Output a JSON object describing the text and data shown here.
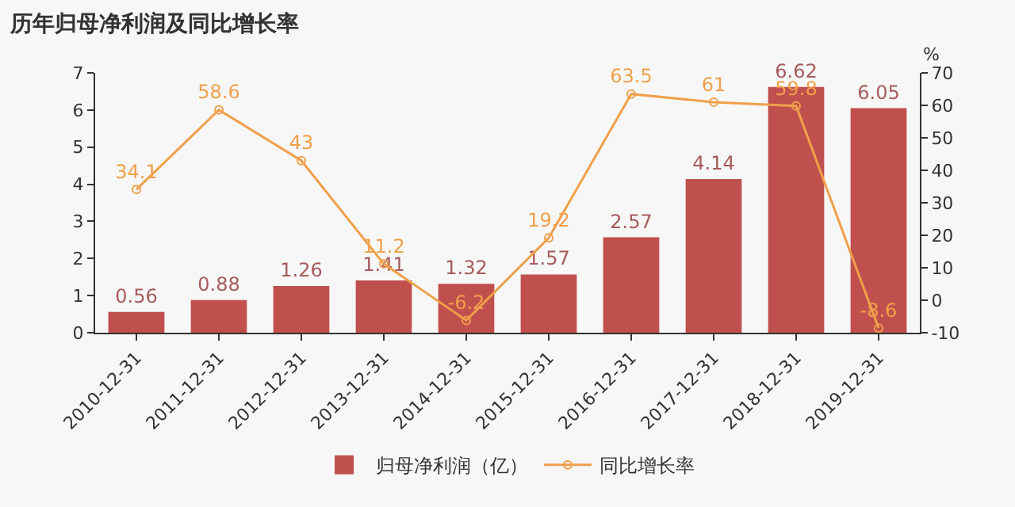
{
  "chart_data": {
    "type": "bar",
    "title": "历年归母净利润及同比增长率",
    "categories": [
      "2010-12-31",
      "2011-12-31",
      "2012-12-31",
      "2013-12-31",
      "2014-12-31",
      "2015-12-31",
      "2016-12-31",
      "2017-12-31",
      "2018-12-31",
      "2019-12-31"
    ],
    "series": [
      {
        "name": "归母净利润（亿）",
        "color": "#c0504d",
        "values": [
          0.56,
          0.88,
          1.26,
          1.41,
          1.32,
          1.57,
          2.57,
          4.14,
          6.62,
          6.05
        ]
      },
      {
        "name": "同比增长率",
        "type": "line",
        "axis": "y2",
        "color": "#f0a04b",
        "values": [
          34.1,
          58.6,
          43,
          11.2,
          -6.2,
          19.2,
          63.5,
          61,
          59.8,
          -8.6
        ]
      }
    ],
    "y2label": "%",
    "ylim": [
      0,
      7
    ],
    "yticks": [
      0,
      1,
      2,
      3,
      4,
      5,
      6,
      7
    ],
    "y2lim": [
      -10,
      70
    ],
    "y2ticks": [
      -10,
      0,
      10,
      20,
      30,
      40,
      50,
      60,
      70
    ],
    "data_labels": true,
    "grid": false,
    "legend": "bottom",
    "marker": "circle",
    "line_style": "solid"
  }
}
